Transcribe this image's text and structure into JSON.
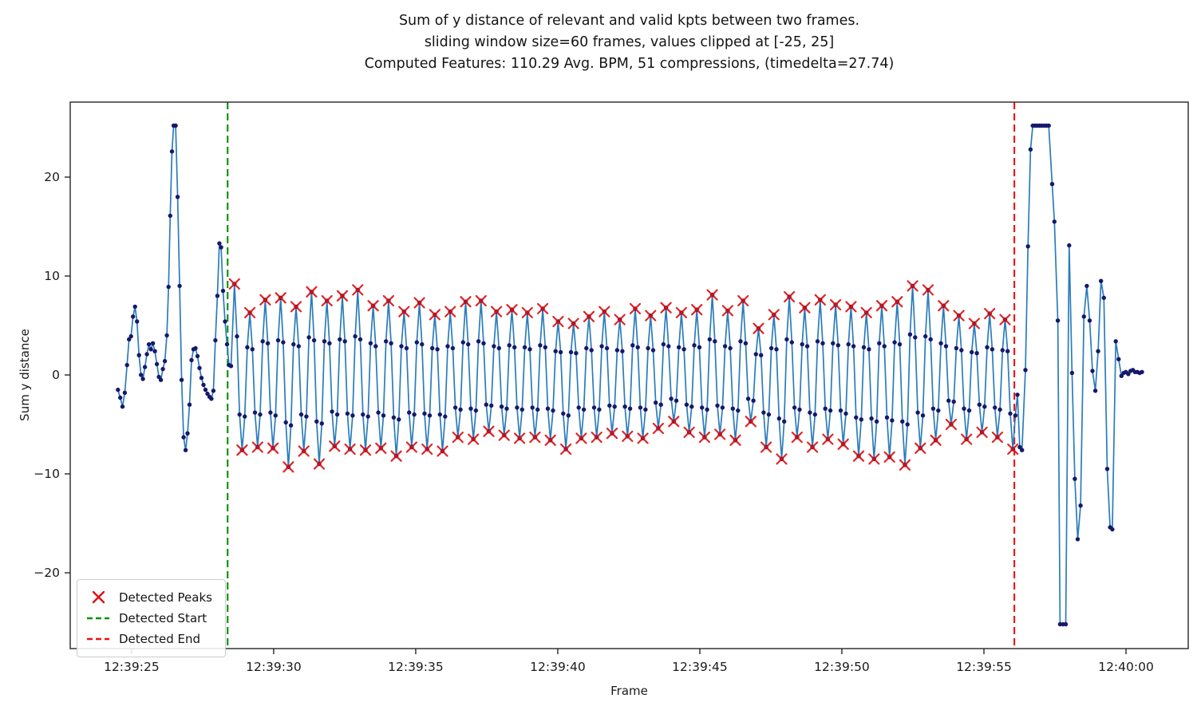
{
  "chart_data": {
    "type": "line",
    "title_lines": [
      "Sum of y distance of relevant and valid kpts between two frames.",
      "sliding window size=60 frames, values clipped at [-25, 25]",
      "Computed Features: 110.29 Avg. BPM, 51 compressions, (timedelta=27.74)"
    ],
    "xlabel": "Frame",
    "ylabel": "Sum y distance",
    "stats": {
      "avg_bpm": 110.29,
      "compressions": 51,
      "timedelta_s": 27.74,
      "sliding_window_frames": 60,
      "clip_range": [
        -25,
        25
      ]
    },
    "x_ticks": [
      {
        "s": 0,
        "label": "12:39:25"
      },
      {
        "s": 5,
        "label": "12:39:30"
      },
      {
        "s": 10,
        "label": "12:39:35"
      },
      {
        "s": 15,
        "label": "12:39:40"
      },
      {
        "s": 20,
        "label": "12:39:45"
      },
      {
        "s": 25,
        "label": "12:39:50"
      },
      {
        "s": 30,
        "label": "12:39:55"
      },
      {
        "s": 35,
        "label": "12:40:00"
      }
    ],
    "y_ticks": [
      {
        "v": -20,
        "label": "−20"
      },
      {
        "v": -10,
        "label": "−10"
      },
      {
        "v": 0,
        "label": "0"
      },
      {
        "v": 10,
        "label": "10"
      },
      {
        "v": 20,
        "label": "20"
      }
    ],
    "xlim_s": [
      -2.16,
      37.19
    ],
    "ylim": [
      -27.66,
      27.58
    ],
    "detected_start_s": 3.38,
    "detected_end_s": 31.07,
    "pre_points": [
      [
        -0.48,
        -1.5
      ],
      [
        -0.4,
        -2.3
      ],
      [
        -0.32,
        -3.2
      ],
      [
        -0.24,
        -1.8
      ],
      [
        -0.16,
        1.0
      ],
      [
        -0.09,
        3.6
      ],
      [
        -0.02,
        3.9
      ],
      [
        0.05,
        5.9
      ],
      [
        0.12,
        6.9
      ],
      [
        0.19,
        5.4
      ],
      [
        0.26,
        2.0
      ],
      [
        0.33,
        0.0
      ],
      [
        0.4,
        -0.4
      ],
      [
        0.47,
        0.8
      ],
      [
        0.54,
        2.1
      ],
      [
        0.61,
        3.1
      ],
      [
        0.68,
        2.6
      ],
      [
        0.75,
        3.2
      ],
      [
        0.82,
        2.4
      ],
      [
        0.89,
        1.1
      ],
      [
        0.96,
        -0.2
      ],
      [
        1.03,
        -0.5
      ],
      [
        1.1,
        0.6
      ],
      [
        1.17,
        1.4
      ],
      [
        1.24,
        4.0
      ],
      [
        1.3,
        8.9
      ],
      [
        1.36,
        16.1
      ],
      [
        1.42,
        22.6
      ],
      [
        1.48,
        25.2
      ],
      [
        1.55,
        25.2
      ],
      [
        1.62,
        18.0
      ],
      [
        1.69,
        9.0
      ],
      [
        1.76,
        -0.5
      ],
      [
        1.83,
        -6.3
      ],
      [
        1.9,
        -7.6
      ],
      [
        1.97,
        -5.9
      ],
      [
        2.04,
        -3.0
      ],
      [
        2.11,
        1.5
      ],
      [
        2.18,
        2.6
      ],
      [
        2.25,
        2.7
      ],
      [
        2.32,
        1.9
      ],
      [
        2.39,
        0.7
      ],
      [
        2.46,
        -0.3
      ],
      [
        2.53,
        -1.0
      ],
      [
        2.6,
        -1.5
      ],
      [
        2.67,
        -1.9
      ],
      [
        2.74,
        -2.2
      ],
      [
        2.81,
        -2.4
      ],
      [
        2.88,
        -1.6
      ],
      [
        2.95,
        3.5
      ],
      [
        3.02,
        8.0
      ],
      [
        3.09,
        13.3
      ],
      [
        3.15,
        12.9
      ],
      [
        3.22,
        8.5
      ],
      [
        3.29,
        5.4
      ],
      [
        3.36,
        3.1
      ],
      [
        3.43,
        1.0
      ],
      [
        3.5,
        0.9
      ]
    ],
    "compression_cycles": {
      "first_peak_s": 3.62,
      "period_s": 0.5425,
      "peak_values": [
        9.2,
        6.3,
        7.6,
        7.8,
        6.9,
        8.4,
        7.5,
        8.0,
        8.6,
        7.0,
        7.5,
        6.4,
        7.3,
        6.1,
        6.4,
        7.4,
        7.5,
        6.4,
        6.6,
        6.3,
        6.7,
        5.4,
        5.2,
        5.9,
        6.4,
        5.6,
        6.7,
        6.0,
        6.8,
        6.3,
        6.6,
        8.1,
        6.5,
        7.5,
        4.7,
        6.1,
        7.9,
        6.8,
        7.6,
        7.1,
        6.9,
        6.3,
        7.0,
        7.4,
        9.0,
        8.6,
        7.0,
        6.0,
        5.2,
        6.2,
        5.6
      ],
      "trough_values": [
        -7.6,
        -7.3,
        -7.4,
        -9.3,
        -7.7,
        -9.0,
        -7.2,
        -7.5,
        -7.6,
        -7.4,
        -8.2,
        -7.3,
        -7.5,
        -7.7,
        -6.3,
        -6.5,
        -5.7,
        -6.1,
        -6.4,
        -6.3,
        -6.6,
        -7.5,
        -6.4,
        -6.3,
        -5.9,
        -6.2,
        -6.4,
        -5.4,
        -4.7,
        -5.8,
        -6.3,
        -6.0,
        -6.6,
        -4.7,
        -7.3,
        -8.5,
        -6.3,
        -7.3,
        -6.5,
        -7.0,
        -8.2,
        -8.5,
        -8.3,
        -9.1,
        -7.4,
        -6.6,
        -5.0,
        -6.5,
        -5.8,
        -6.3,
        -7.5
      ]
    },
    "post_points": [
      [
        31.18,
        -2.0
      ],
      [
        31.26,
        -7.3
      ],
      [
        31.34,
        -7.6
      ],
      [
        31.46,
        0.5
      ],
      [
        31.55,
        13.0
      ],
      [
        31.64,
        22.8
      ],
      [
        31.72,
        25.2
      ],
      [
        31.8,
        25.2
      ],
      [
        31.88,
        25.2
      ],
      [
        31.96,
        25.2
      ],
      [
        32.04,
        25.2
      ],
      [
        32.12,
        25.2
      ],
      [
        32.2,
        25.2
      ],
      [
        32.28,
        25.2
      ],
      [
        32.4,
        19.3
      ],
      [
        32.48,
        15.5
      ],
      [
        32.6,
        5.5
      ],
      [
        32.68,
        -25.2
      ],
      [
        32.78,
        -25.2
      ],
      [
        32.88,
        -25.2
      ],
      [
        33.0,
        13.1
      ],
      [
        33.1,
        0.2
      ],
      [
        33.2,
        -10.5
      ],
      [
        33.3,
        -16.6
      ],
      [
        33.4,
        -13.2
      ],
      [
        33.52,
        5.9
      ],
      [
        33.62,
        9.0
      ],
      [
        33.72,
        5.5
      ],
      [
        33.82,
        0.4
      ],
      [
        33.92,
        -1.6
      ],
      [
        34.02,
        2.4
      ],
      [
        34.12,
        9.5
      ],
      [
        34.22,
        7.8
      ],
      [
        34.34,
        -9.5
      ],
      [
        34.44,
        -15.4
      ],
      [
        34.52,
        -15.6
      ],
      [
        34.64,
        3.4
      ],
      [
        34.74,
        1.6
      ],
      [
        34.84,
        -0.1
      ],
      [
        34.92,
        0.2
      ],
      [
        35.0,
        0.3
      ],
      [
        35.08,
        0.1
      ],
      [
        35.16,
        0.4
      ],
      [
        35.24,
        0.5
      ],
      [
        35.32,
        0.3
      ],
      [
        35.4,
        0.3
      ],
      [
        35.48,
        0.2
      ],
      [
        35.56,
        0.3
      ]
    ],
    "colors": {
      "line": "#2b7cba",
      "marker_dot": "#16186b",
      "peak_x": "#dd1111",
      "start_line": "#0a8f0a",
      "end_line": "#ee1111",
      "axis": "#262626"
    },
    "legend_position": "lower left",
    "grid": false
  },
  "legend": {
    "items": [
      {
        "label": "Detected Peaks",
        "marker": "red-x"
      },
      {
        "label": "Detected Start",
        "marker": "green-dashed"
      },
      {
        "label": "Detected End",
        "marker": "red-dashed"
      }
    ]
  }
}
